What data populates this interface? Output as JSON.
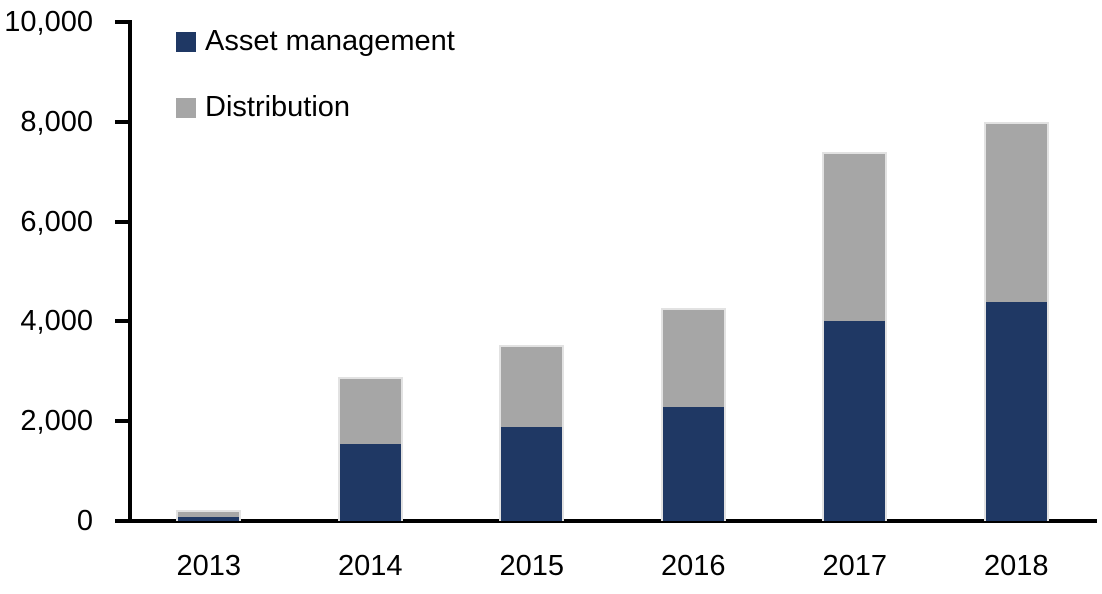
{
  "chart_data": {
    "type": "bar",
    "variant": "stacked-column",
    "title": "",
    "xlabel": "",
    "ylabel": "",
    "categories": [
      "2013",
      "2014",
      "2015",
      "2016",
      "2017",
      "2018"
    ],
    "series": [
      {
        "name": "Asset management",
        "color": "#1F3864",
        "values": [
          120,
          1580,
          1920,
          2320,
          4050,
          4430
        ]
      },
      {
        "name": "Distribution",
        "color": "#A6A6A6",
        "values": [
          100,
          1310,
          1610,
          1950,
          3350,
          3570
        ]
      }
    ],
    "totals": [
      220,
      2890,
      3530,
      4270,
      7400,
      8000
    ],
    "ylim": [
      0,
      10000
    ],
    "y_ticks": [
      {
        "value": 0,
        "label": "0"
      },
      {
        "value": 2000,
        "label": "2,000"
      },
      {
        "value": 4000,
        "label": "4,000"
      },
      {
        "value": 6000,
        "label": "6,000"
      },
      {
        "value": 8000,
        "label": "8,000"
      },
      {
        "value": 10000,
        "label": "10,000"
      }
    ],
    "grid": false,
    "legend_position": "top-left-inside",
    "axis_color": "#000000",
    "bar_border_color": "#E2E2E2",
    "text_color": "#000000"
  }
}
